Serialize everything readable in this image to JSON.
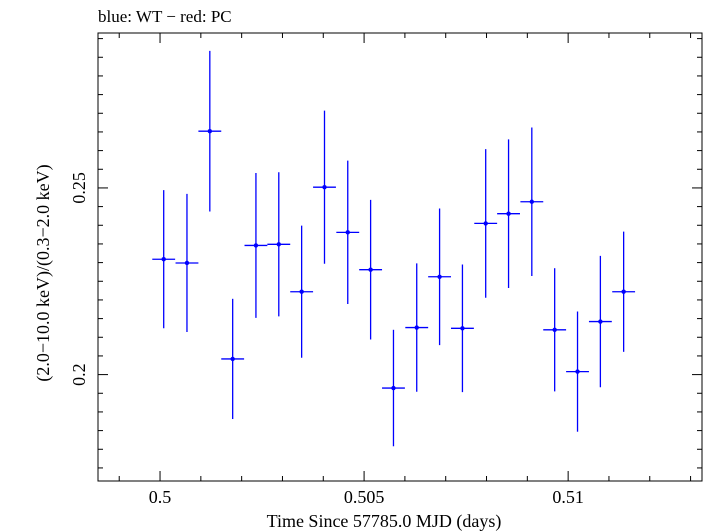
{
  "chart_data": {
    "type": "scatter",
    "title": "blue: WT − red: PC",
    "xlabel": "Time Since 57785.0 MJD (days)",
    "ylabel": "(2.0−10.0 keV)/(0.3−2.0 keV)",
    "xlim": [
      0.49848,
      0.51328
    ],
    "ylim": [
      0.1715,
      0.2915
    ],
    "x_ticks": [
      {
        "value": 0.5,
        "label": "0.5"
      },
      {
        "value": 0.505,
        "label": "0.505"
      },
      {
        "value": 0.51,
        "label": "0.51"
      }
    ],
    "y_ticks": [
      {
        "value": 0.2,
        "label": "0.2"
      },
      {
        "value": 0.25,
        "label": "0.25"
      }
    ],
    "grid": false,
    "series": [
      {
        "color": "#0000ff",
        "points": [
          {
            "x": 0.50009,
            "y": 0.2309,
            "xerr": 0.00028,
            "yerr": 0.0185
          },
          {
            "x": 0.50066,
            "y": 0.2299,
            "xerr": 0.00028,
            "yerr": 0.0185
          },
          {
            "x": 0.50122,
            "y": 0.2652,
            "xerr": 0.00028,
            "yerr": 0.0215
          },
          {
            "x": 0.50178,
            "y": 0.2042,
            "xerr": 0.00028,
            "yerr": 0.0161
          },
          {
            "x": 0.50235,
            "y": 0.2346,
            "xerr": 0.00028,
            "yerr": 0.0194
          },
          {
            "x": 0.50291,
            "y": 0.2349,
            "xerr": 0.00028,
            "yerr": 0.0193
          },
          {
            "x": 0.50347,
            "y": 0.2222,
            "xerr": 0.00028,
            "yerr": 0.0177
          },
          {
            "x": 0.50403,
            "y": 0.2502,
            "xerr": 0.00028,
            "yerr": 0.0205
          },
          {
            "x": 0.5046,
            "y": 0.2381,
            "xerr": 0.00028,
            "yerr": 0.0192
          },
          {
            "x": 0.50516,
            "y": 0.2281,
            "xerr": 0.00028,
            "yerr": 0.0187
          },
          {
            "x": 0.50572,
            "y": 0.1964,
            "xerr": 0.00028,
            "yerr": 0.0156
          },
          {
            "x": 0.50629,
            "y": 0.2126,
            "xerr": 0.00028,
            "yerr": 0.0172
          },
          {
            "x": 0.50685,
            "y": 0.2262,
            "xerr": 0.00028,
            "yerr": 0.0183
          },
          {
            "x": 0.50741,
            "y": 0.2124,
            "xerr": 0.00028,
            "yerr": 0.0171
          },
          {
            "x": 0.50798,
            "y": 0.2405,
            "xerr": 0.00028,
            "yerr": 0.0199
          },
          {
            "x": 0.50854,
            "y": 0.2431,
            "xerr": 0.00028,
            "yerr": 0.0199
          },
          {
            "x": 0.50911,
            "y": 0.2463,
            "xerr": 0.00028,
            "yerr": 0.0199
          },
          {
            "x": 0.50967,
            "y": 0.212,
            "xerr": 0.00028,
            "yerr": 0.0165
          },
          {
            "x": 0.51023,
            "y": 0.2008,
            "xerr": 0.00028,
            "yerr": 0.0161
          },
          {
            "x": 0.51079,
            "y": 0.2142,
            "xerr": 0.00028,
            "yerr": 0.0176
          },
          {
            "x": 0.51136,
            "y": 0.2222,
            "xerr": 0.00028,
            "yerr": 0.0161
          }
        ]
      }
    ]
  }
}
